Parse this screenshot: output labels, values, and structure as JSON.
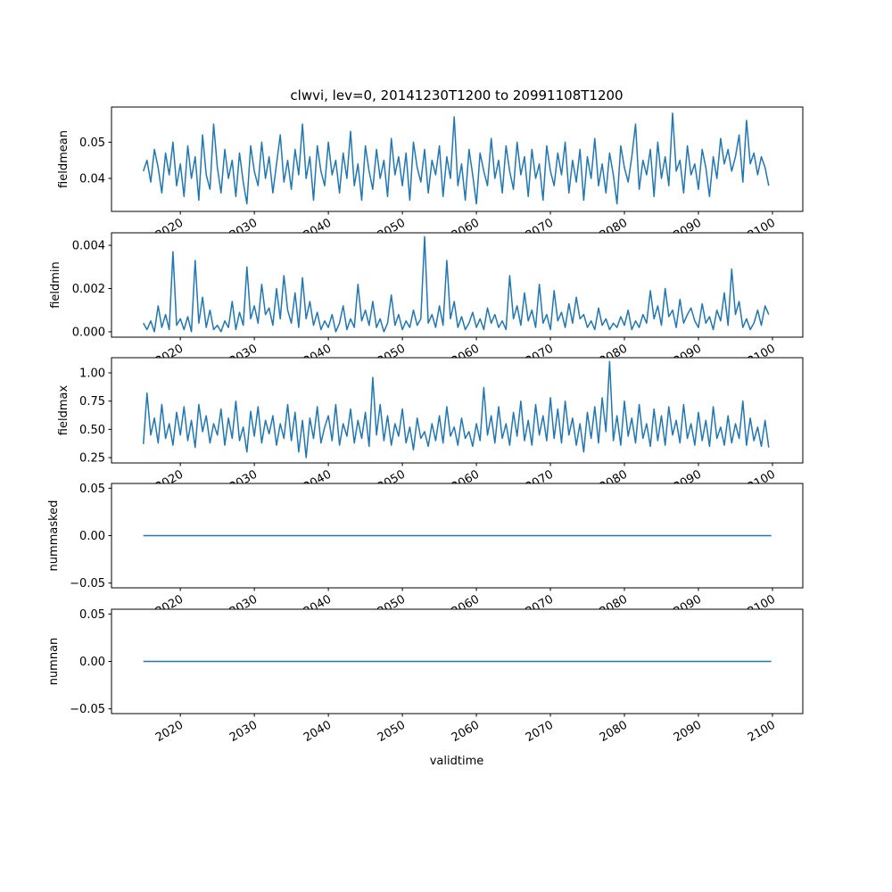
{
  "chart_data": {
    "type": "line",
    "title": "clwvi, lev=0, 20141230T1200 to 20991108T1200",
    "xlabel": "validtime",
    "xlim": [
      2010.7,
      2104.1
    ],
    "x_start": 2015.0,
    "x_step": 0.5,
    "x_ticks": [
      2020,
      2030,
      2040,
      2050,
      2060,
      2070,
      2080,
      2090,
      2100
    ],
    "x_tick_labels": [
      "2020",
      "2030",
      "2040",
      "2050",
      "2060",
      "2070",
      "2080",
      "2090",
      "2100"
    ],
    "line_color": "#1f77b4",
    "grid": false,
    "panels": [
      {
        "ylabel": "fieldmean",
        "ylim": [
          0.0309,
          0.0597
        ],
        "y_ticks": [
          0.04,
          0.05
        ],
        "y_tick_labels": [
          "0.04",
          "0.05"
        ],
        "values": [
          0.042,
          0.045,
          0.039,
          0.048,
          0.043,
          0.036,
          0.047,
          0.041,
          0.05,
          0.038,
          0.044,
          0.035,
          0.049,
          0.04,
          0.046,
          0.034,
          0.052,
          0.041,
          0.037,
          0.055,
          0.043,
          0.036,
          0.048,
          0.04,
          0.045,
          0.035,
          0.047,
          0.039,
          0.033,
          0.049,
          0.042,
          0.038,
          0.05,
          0.04,
          0.046,
          0.036,
          0.044,
          0.052,
          0.039,
          0.045,
          0.037,
          0.048,
          0.041,
          0.055,
          0.04,
          0.046,
          0.034,
          0.049,
          0.042,
          0.038,
          0.05,
          0.041,
          0.045,
          0.036,
          0.047,
          0.04,
          0.053,
          0.038,
          0.044,
          0.034,
          0.049,
          0.042,
          0.037,
          0.048,
          0.04,
          0.045,
          0.035,
          0.051,
          0.041,
          0.046,
          0.038,
          0.047,
          0.034,
          0.05,
          0.043,
          0.039,
          0.048,
          0.036,
          0.045,
          0.041,
          0.049,
          0.035,
          0.046,
          0.04,
          0.057,
          0.038,
          0.044,
          0.034,
          0.048,
          0.041,
          0.033,
          0.047,
          0.042,
          0.038,
          0.051,
          0.04,
          0.045,
          0.036,
          0.049,
          0.042,
          0.037,
          0.05,
          0.041,
          0.046,
          0.035,
          0.048,
          0.04,
          0.044,
          0.034,
          0.049,
          0.042,
          0.038,
          0.047,
          0.041,
          0.05,
          0.036,
          0.045,
          0.039,
          0.048,
          0.034,
          0.046,
          0.04,
          0.051,
          0.038,
          0.044,
          0.036,
          0.047,
          0.041,
          0.033,
          0.049,
          0.043,
          0.039,
          0.046,
          0.055,
          0.037,
          0.045,
          0.041,
          0.048,
          0.035,
          0.05,
          0.04,
          0.046,
          0.038,
          0.058,
          0.042,
          0.045,
          0.036,
          0.049,
          0.041,
          0.044,
          0.037,
          0.048,
          0.043,
          0.035,
          0.046,
          0.04,
          0.051,
          0.044,
          0.048,
          0.042,
          0.046,
          0.052,
          0.039,
          0.056,
          0.044,
          0.047,
          0.041,
          0.046,
          0.043,
          0.038
        ]
      },
      {
        "ylabel": "fieldmin",
        "ylim": [
          -0.00025,
          0.00458
        ],
        "y_ticks": [
          0.0,
          0.002,
          0.004
        ],
        "y_tick_labels": [
          "0.000",
          "0.002",
          "0.004"
        ],
        "values": [
          0.0004,
          0.0001,
          0.0005,
          0.0,
          0.0012,
          0.0002,
          0.0008,
          0.0001,
          0.0037,
          0.0003,
          0.0006,
          0.0001,
          0.0007,
          0.0,
          0.0033,
          0.0004,
          0.0016,
          0.0002,
          0.001,
          0.0001,
          0.0003,
          0.0,
          0.0005,
          0.0002,
          0.0014,
          0.0001,
          0.0009,
          0.0003,
          0.003,
          0.0006,
          0.0012,
          0.0004,
          0.0022,
          0.0008,
          0.0011,
          0.0003,
          0.002,
          0.0006,
          0.0026,
          0.001,
          0.0004,
          0.0018,
          0.0002,
          0.0025,
          0.0006,
          0.0014,
          0.0003,
          0.0009,
          0.0001,
          0.0005,
          0.0002,
          0.0008,
          0.0,
          0.0004,
          0.0012,
          0.0001,
          0.0006,
          0.0002,
          0.0022,
          0.0005,
          0.001,
          0.0003,
          0.0014,
          0.0002,
          0.0006,
          0.0,
          0.0004,
          0.0017,
          0.0003,
          0.0008,
          0.0001,
          0.0005,
          0.0002,
          0.001,
          0.0003,
          0.0006,
          0.0044,
          0.0004,
          0.0008,
          0.0002,
          0.0012,
          0.0003,
          0.0033,
          0.0006,
          0.0014,
          0.0002,
          0.0007,
          0.0001,
          0.0004,
          0.0009,
          0.0002,
          0.0006,
          0.0001,
          0.0011,
          0.0004,
          0.0008,
          0.0002,
          0.0005,
          0.0001,
          0.0026,
          0.0006,
          0.0012,
          0.0003,
          0.0018,
          0.0005,
          0.001,
          0.0002,
          0.0022,
          0.0004,
          0.0008,
          0.0001,
          0.0019,
          0.0005,
          0.0009,
          0.0002,
          0.0013,
          0.0004,
          0.0016,
          0.0006,
          0.0008,
          0.0002,
          0.0005,
          0.0001,
          0.0011,
          0.0003,
          0.0006,
          0.0001,
          0.0004,
          0.0002,
          0.0007,
          0.0003,
          0.001,
          0.0001,
          0.0005,
          0.0002,
          0.0008,
          0.0004,
          0.0019,
          0.0006,
          0.0012,
          0.0003,
          0.002,
          0.0007,
          0.001,
          0.0002,
          0.0015,
          0.0004,
          0.0008,
          0.0011,
          0.0005,
          0.0002,
          0.0013,
          0.0004,
          0.0007,
          0.0001,
          0.001,
          0.0005,
          0.0018,
          0.0003,
          0.0029,
          0.0008,
          0.0014,
          0.0002,
          0.0006,
          0.0001,
          0.0004,
          0.001,
          0.0003,
          0.0012,
          0.0008
        ]
      },
      {
        "ylabel": "fieldmax",
        "ylim": [
          0.203,
          1.134
        ],
        "y_ticks": [
          0.25,
          0.5,
          0.75,
          1.0
        ],
        "y_tick_labels": [
          "0.25",
          "0.50",
          "0.75",
          "1.00"
        ],
        "values": [
          0.37,
          0.82,
          0.45,
          0.6,
          0.38,
          0.72,
          0.42,
          0.55,
          0.36,
          0.65,
          0.45,
          0.7,
          0.4,
          0.58,
          0.34,
          0.72,
          0.48,
          0.62,
          0.38,
          0.55,
          0.45,
          0.68,
          0.36,
          0.6,
          0.42,
          0.75,
          0.4,
          0.52,
          0.3,
          0.66,
          0.44,
          0.7,
          0.38,
          0.58,
          0.46,
          0.62,
          0.36,
          0.55,
          0.42,
          0.72,
          0.4,
          0.65,
          0.3,
          0.58,
          0.25,
          0.6,
          0.42,
          0.7,
          0.38,
          0.52,
          0.62,
          0.4,
          0.72,
          0.36,
          0.55,
          0.44,
          0.68,
          0.38,
          0.58,
          0.42,
          0.65,
          0.35,
          0.96,
          0.45,
          0.72,
          0.4,
          0.62,
          0.36,
          0.55,
          0.44,
          0.68,
          0.38,
          0.52,
          0.32,
          0.6,
          0.42,
          0.48,
          0.35,
          0.55,
          0.4,
          0.62,
          0.38,
          0.7,
          0.44,
          0.52,
          0.36,
          0.6,
          0.42,
          0.48,
          0.35,
          0.55,
          0.4,
          0.87,
          0.45,
          0.62,
          0.38,
          0.7,
          0.42,
          0.55,
          0.36,
          0.65,
          0.44,
          0.75,
          0.4,
          0.58,
          0.36,
          0.72,
          0.45,
          0.62,
          0.4,
          0.78,
          0.42,
          0.68,
          0.38,
          0.75,
          0.45,
          0.6,
          0.36,
          0.55,
          0.3,
          0.65,
          0.42,
          0.7,
          0.38,
          0.78,
          0.48,
          1.1,
          0.4,
          0.62,
          0.36,
          0.75,
          0.44,
          0.6,
          0.38,
          0.72,
          0.42,
          0.55,
          0.35,
          0.68,
          0.4,
          0.62,
          0.36,
          0.7,
          0.45,
          0.58,
          0.38,
          0.72,
          0.42,
          0.55,
          0.36,
          0.65,
          0.4,
          0.58,
          0.35,
          0.7,
          0.42,
          0.52,
          0.36,
          0.62,
          0.38,
          0.55,
          0.42,
          0.75,
          0.36,
          0.6,
          0.4,
          0.52,
          0.35,
          0.58,
          0.34
        ]
      },
      {
        "ylabel": "nummasked",
        "ylim": [
          -0.055,
          0.055
        ],
        "y_ticks": [
          -0.05,
          0.0,
          0.05
        ],
        "y_tick_labels": [
          "−0.05",
          "0.00",
          "0.05"
        ],
        "constant_value": 0.0,
        "x_end": 2099.85
      },
      {
        "ylabel": "numnan",
        "ylim": [
          -0.055,
          0.055
        ],
        "y_ticks": [
          -0.05,
          0.0,
          0.05
        ],
        "y_tick_labels": [
          "−0.05",
          "0.00",
          "0.05"
        ],
        "constant_value": 0.0,
        "x_end": 2099.85
      }
    ]
  }
}
